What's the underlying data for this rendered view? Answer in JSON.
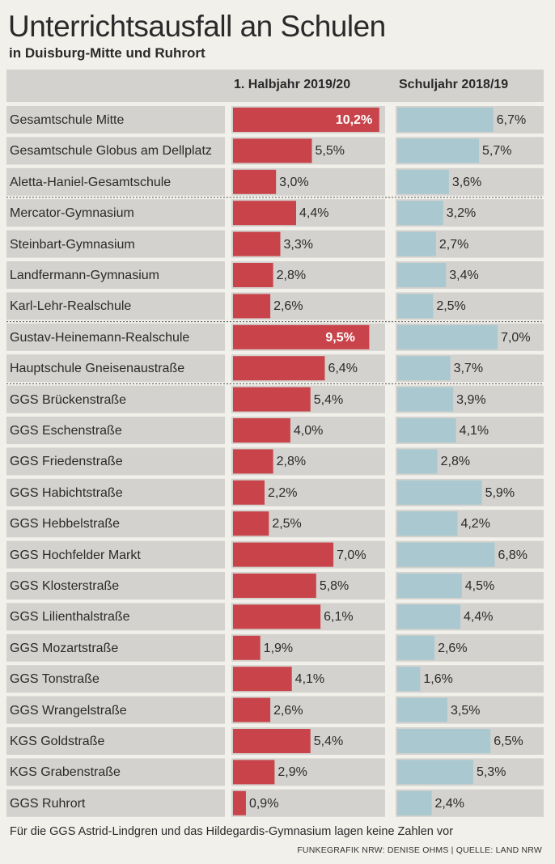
{
  "title": "Unterrichtsausfall an Schulen",
  "subtitle": "in Duisburg-Mitte und Ruhrort",
  "footnote": "Für die GGS Astrid-Lindgren und das Hildegardis-Gymnasium lagen keine Zahlen vor",
  "credit": "FUNKEGRAFIK NRW: DENISE OHMS | QUELLE: LAND NRW",
  "colors": {
    "current_bar": "#c9444a",
    "previous_bar": "#a9c8d0",
    "row_shade": "#d3d2ce"
  },
  "chart_data": {
    "type": "bar",
    "orientation": "horizontal",
    "categories": [
      "Gesamtschule Mitte",
      "Gesamtschule Globus am Dellplatz",
      "Aletta-Haniel-Gesamtschule",
      "Mercator-Gymnasium",
      "Steinbart-Gymnasium",
      "Landfermann-Gymnasium",
      "Karl-Lehr-Realschule",
      "Gustav-Heinemann-Realschule",
      "Hauptschule Gneisenaustraße",
      "GGS Brückenstraße",
      "GGS Eschenstraße",
      "GGS Friedenstraße",
      "GGS Habichtstraße",
      "GGS Hebbelstraße",
      "GGS Hochfelder Markt",
      "GGS Klosterstraße",
      "GGS Lilienthalstraße",
      "GGS Mozartstraße",
      "GGS Tonstraße",
      "GGS Wrangelstraße",
      "KGS Goldstraße",
      "KGS Grabenstraße",
      "GGS Ruhrort"
    ],
    "series": [
      {
        "name": "1. Halbjahr 2019/20",
        "values": [
          10.2,
          5.5,
          3.0,
          4.4,
          3.3,
          2.8,
          2.6,
          9.5,
          6.4,
          5.4,
          4.0,
          2.8,
          2.2,
          2.5,
          7.0,
          5.8,
          6.1,
          1.9,
          4.1,
          2.6,
          5.4,
          2.9,
          0.9
        ],
        "labels": [
          "10,2%",
          "5,5%",
          "3,0%",
          "4,4%",
          "3,3%",
          "2,8%",
          "2,6%",
          "9,5%",
          "6,4%",
          "5,4%",
          "4,0%",
          "2,8%",
          "2,2%",
          "2,5%",
          "7,0%",
          "5,8%",
          "6,1%",
          "1,9%",
          "4,1%",
          "2,6%",
          "5,4%",
          "2,9%",
          "0,9%"
        ]
      },
      {
        "name": "Schuljahr 2018/19",
        "values": [
          6.7,
          5.7,
          3.6,
          3.2,
          2.7,
          3.4,
          2.5,
          7.0,
          3.7,
          3.9,
          4.1,
          2.8,
          5.9,
          4.2,
          6.8,
          4.5,
          4.4,
          2.6,
          1.6,
          3.5,
          6.5,
          5.3,
          2.4
        ],
        "labels": [
          "6,7%",
          "5,7%",
          "3,6%",
          "3,2%",
          "2,7%",
          "3,4%",
          "2,5%",
          "7,0%",
          "3,7%",
          "3,9%",
          "4,1%",
          "2,8%",
          "5,9%",
          "4,2%",
          "6,8%",
          "4,5%",
          "4,4%",
          "2,6%",
          "1,6%",
          "3,5%",
          "6,5%",
          "5,3%",
          "2,4%"
        ]
      }
    ],
    "unit": "%",
    "grid": false,
    "legend": "column headers above each bar group"
  }
}
